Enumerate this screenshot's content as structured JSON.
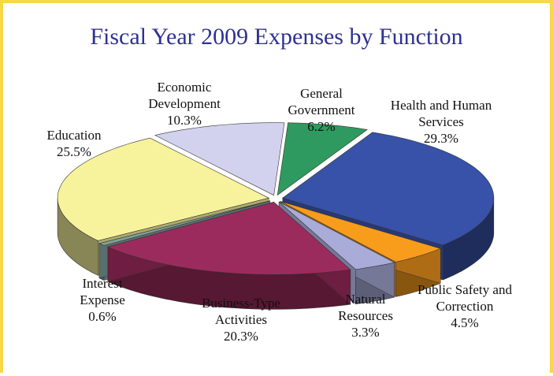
{
  "chart_data": {
    "type": "pie",
    "title": "Fiscal Year 2009 Expenses by Function",
    "categories": [
      "General Government",
      "Health and Human Services",
      "Public Safety and Correction",
      "Natural Resources",
      "Business-Type Activities",
      "Interest Expense",
      "Education",
      "Economic Development"
    ],
    "values": [
      6.2,
      29.3,
      4.5,
      3.3,
      20.3,
      0.6,
      25.5,
      10.3
    ],
    "value_labels": [
      "6.2%",
      "29.3%",
      "4.5%",
      "3.3%",
      "20.3%",
      "0.6%",
      "25.5%",
      "10.3%"
    ],
    "colors": [
      "#2f9a5f",
      "#3752a8",
      "#f89c1c",
      "#a9abd9",
      "#9c2b5d",
      "#809f9b",
      "#f7f39c",
      "#d2d2ee"
    ]
  }
}
